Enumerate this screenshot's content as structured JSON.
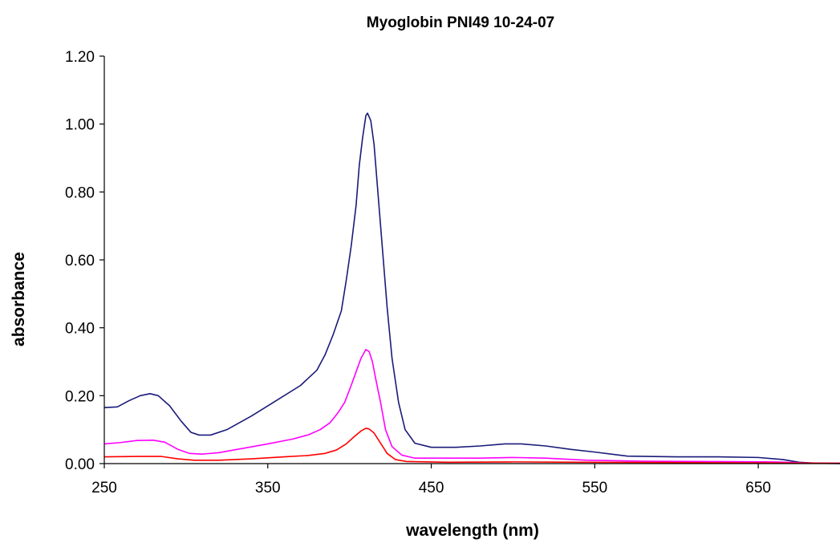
{
  "chart_data": {
    "type": "line",
    "title": "Myoglobin PNI49 10-24-07",
    "xlabel": "wavelength (nm)",
    "ylabel": "absorbance",
    "xlim": [
      250,
      700
    ],
    "ylim": [
      0,
      1.2
    ],
    "xticks": [
      "250",
      "350",
      "450",
      "550",
      "650"
    ],
    "yticks": [
      "0.00",
      "0.20",
      "0.40",
      "0.60",
      "0.80",
      "1.00",
      "1.20"
    ],
    "grid": false,
    "legend": "none",
    "series": [
      {
        "color": "#1a1a7a",
        "points": [
          [
            250,
            0.165
          ],
          [
            258,
            0.167
          ],
          [
            265,
            0.185
          ],
          [
            272,
            0.2
          ],
          [
            278,
            0.206
          ],
          [
            283,
            0.2
          ],
          [
            290,
            0.17
          ],
          [
            297,
            0.125
          ],
          [
            303,
            0.092
          ],
          [
            308,
            0.084
          ],
          [
            315,
            0.084
          ],
          [
            325,
            0.1
          ],
          [
            340,
            0.14
          ],
          [
            355,
            0.185
          ],
          [
            370,
            0.23
          ],
          [
            380,
            0.275
          ],
          [
            385,
            0.32
          ],
          [
            390,
            0.38
          ],
          [
            395,
            0.45
          ],
          [
            398,
            0.54
          ],
          [
            401,
            0.64
          ],
          [
            404,
            0.76
          ],
          [
            406,
            0.88
          ],
          [
            408,
            0.96
          ],
          [
            410,
            1.025
          ],
          [
            411,
            1.032
          ],
          [
            413,
            1.01
          ],
          [
            415,
            0.94
          ],
          [
            417,
            0.82
          ],
          [
            420,
            0.64
          ],
          [
            423,
            0.46
          ],
          [
            426,
            0.31
          ],
          [
            430,
            0.18
          ],
          [
            434,
            0.1
          ],
          [
            440,
            0.06
          ],
          [
            450,
            0.048
          ],
          [
            465,
            0.048
          ],
          [
            480,
            0.052
          ],
          [
            495,
            0.058
          ],
          [
            505,
            0.058
          ],
          [
            520,
            0.052
          ],
          [
            535,
            0.042
          ],
          [
            550,
            0.034
          ],
          [
            570,
            0.022
          ],
          [
            600,
            0.02
          ],
          [
            625,
            0.02
          ],
          [
            650,
            0.018
          ],
          [
            665,
            0.012
          ],
          [
            675,
            0.004
          ],
          [
            685,
            0.001
          ],
          [
            700,
            0.0
          ]
        ]
      },
      {
        "color": "#ff00ff",
        "points": [
          [
            250,
            0.058
          ],
          [
            260,
            0.062
          ],
          [
            270,
            0.068
          ],
          [
            280,
            0.069
          ],
          [
            287,
            0.063
          ],
          [
            295,
            0.042
          ],
          [
            302,
            0.03
          ],
          [
            310,
            0.028
          ],
          [
            320,
            0.032
          ],
          [
            335,
            0.045
          ],
          [
            350,
            0.058
          ],
          [
            365,
            0.072
          ],
          [
            375,
            0.085
          ],
          [
            382,
            0.1
          ],
          [
            388,
            0.12
          ],
          [
            393,
            0.15
          ],
          [
            397,
            0.18
          ],
          [
            401,
            0.23
          ],
          [
            404,
            0.27
          ],
          [
            407,
            0.31
          ],
          [
            410,
            0.336
          ],
          [
            412,
            0.33
          ],
          [
            414,
            0.3
          ],
          [
            416,
            0.25
          ],
          [
            419,
            0.18
          ],
          [
            422,
            0.1
          ],
          [
            426,
            0.05
          ],
          [
            432,
            0.025
          ],
          [
            440,
            0.016
          ],
          [
            460,
            0.016
          ],
          [
            480,
            0.016
          ],
          [
            500,
            0.018
          ],
          [
            520,
            0.016
          ],
          [
            545,
            0.01
          ],
          [
            580,
            0.007
          ],
          [
            620,
            0.006
          ],
          [
            660,
            0.005
          ],
          [
            680,
            0.002
          ],
          [
            700,
            0.001
          ]
        ]
      },
      {
        "color": "#ff0000",
        "points": [
          [
            250,
            0.02
          ],
          [
            270,
            0.021
          ],
          [
            285,
            0.021
          ],
          [
            295,
            0.014
          ],
          [
            305,
            0.01
          ],
          [
            320,
            0.01
          ],
          [
            340,
            0.014
          ],
          [
            360,
            0.02
          ],
          [
            375,
            0.024
          ],
          [
            385,
            0.03
          ],
          [
            392,
            0.04
          ],
          [
            398,
            0.058
          ],
          [
            403,
            0.08
          ],
          [
            407,
            0.096
          ],
          [
            410,
            0.104
          ],
          [
            412,
            0.102
          ],
          [
            415,
            0.09
          ],
          [
            419,
            0.06
          ],
          [
            423,
            0.03
          ],
          [
            428,
            0.012
          ],
          [
            435,
            0.006
          ],
          [
            460,
            0.004
          ],
          [
            500,
            0.005
          ],
          [
            540,
            0.004
          ],
          [
            600,
            0.003
          ],
          [
            660,
            0.002
          ],
          [
            700,
            0.001
          ]
        ]
      }
    ]
  }
}
